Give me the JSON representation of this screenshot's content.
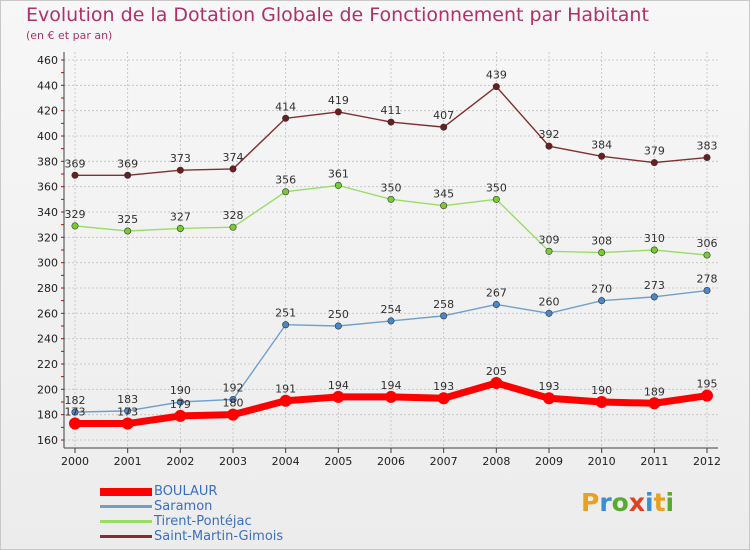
{
  "header": {
    "title": "Evolution de la Dotation Globale de Fonctionnement par Habitant",
    "subtitle": "(en € et par an)"
  },
  "brand": {
    "letters": [
      "P",
      "r",
      "o",
      "x",
      "i",
      "t",
      "i"
    ],
    "colors": [
      "#e8a020",
      "#3a8fd0",
      "#5aaa30",
      "#e04020",
      "#3a8fd0",
      "#e8a020",
      "#5aaa30"
    ]
  },
  "colors": {
    "title": "#b0306a",
    "grid": "#c0c0c0",
    "axis": "#404040",
    "tick_label": "#202020"
  },
  "chart_data": {
    "type": "line",
    "title": "Evolution de la Dotation Globale de Fonctionnement par Habitant",
    "subtitle": "(en € et par an)",
    "x": [
      "2000",
      "2001",
      "2002",
      "2003",
      "2004",
      "2005",
      "2006",
      "2007",
      "2008",
      "2009",
      "2010",
      "2011",
      "2012"
    ],
    "ylim": [
      160,
      460
    ],
    "yticks": [
      160,
      180,
      200,
      220,
      240,
      260,
      280,
      300,
      320,
      340,
      360,
      380,
      400,
      420,
      440,
      460
    ],
    "grid": true,
    "legend_position": "bottom-left",
    "series": [
      {
        "name": "BOULAUR",
        "color": "#ff0000",
        "point_color": "#ff0000",
        "width": 7,
        "values": [
          173,
          173,
          179,
          180,
          191,
          194,
          194,
          193,
          205,
          193,
          190,
          189,
          195
        ],
        "labels": [
          "173",
          "173",
          "179",
          "180",
          "191",
          "194",
          "194",
          "193",
          "205",
          "193",
          "190",
          "189",
          "195"
        ]
      },
      {
        "name": "Saramon",
        "color": "#6fa0cc",
        "point_color": "#4a88c8",
        "width": 1.4,
        "values": [
          182,
          183,
          190,
          192,
          251,
          250,
          254,
          258,
          267,
          260,
          270,
          273,
          278
        ],
        "labels": [
          "182",
          "183",
          "190",
          "192",
          "251",
          "250",
          "254",
          "258",
          "267",
          "260",
          "270",
          "273",
          "278"
        ]
      },
      {
        "name": "Tirent-Pontéjac",
        "color": "#99dd66",
        "point_color": "#77cc33",
        "width": 1.4,
        "values": [
          329,
          325,
          327,
          328,
          356,
          361,
          350,
          345,
          350,
          309,
          308,
          310,
          306
        ],
        "labels": [
          "329",
          "325",
          "327",
          "328",
          "356",
          "361",
          "350",
          "345",
          "350",
          "309",
          "308",
          "310",
          "306"
        ]
      },
      {
        "name": "Saint-Martin-Gimois",
        "color": "#803030",
        "point_color": "#6b1e1e",
        "width": 1.4,
        "values": [
          369,
          369,
          373,
          374,
          414,
          419,
          411,
          407,
          439,
          392,
          384,
          379,
          383
        ],
        "labels": [
          "369",
          "369",
          "373",
          "374",
          "414",
          "419",
          "411",
          "407",
          "439",
          "392",
          "384",
          "379",
          "383"
        ]
      }
    ]
  }
}
